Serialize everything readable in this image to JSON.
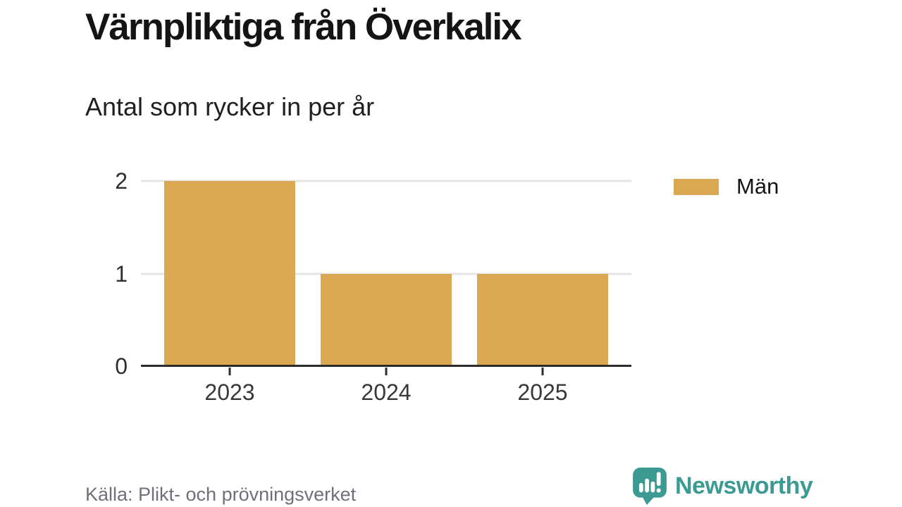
{
  "header": {
    "title": "Värnpliktiga från Överkalix",
    "subtitle": "Antal som rycker in per år"
  },
  "chart_data": {
    "type": "bar",
    "title": "Värnpliktiga från Överkalix",
    "subtitle": "Antal som rycker in per år",
    "categories": [
      "2023",
      "2024",
      "2025"
    ],
    "series": [
      {
        "name": "Män",
        "values": [
          2,
          1,
          1
        ],
        "color": "#D9A851"
      }
    ],
    "xlabel": "",
    "ylabel": "",
    "ylim": [
      0,
      2
    ],
    "yticks": [
      0,
      1,
      2
    ],
    "grid": true,
    "legend_position": "top-right"
  },
  "footer": {
    "source": "Källa: Plikt- och prövningsverket",
    "brand": "Newsworthy"
  },
  "colors": {
    "bar": "#D9A851",
    "brand_teal": "#3B9B93",
    "axis": "#2D2D2D",
    "gridline": "#E4E4E4",
    "source_text": "#70707A",
    "background": "#FFFFFF"
  }
}
